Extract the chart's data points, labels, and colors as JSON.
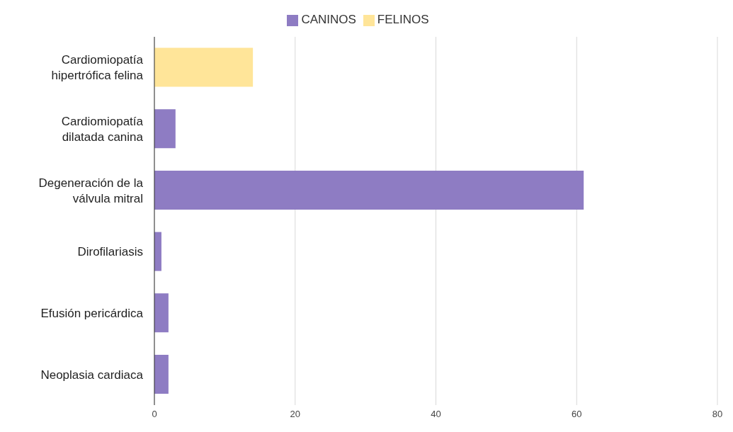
{
  "chart_data": {
    "type": "bar",
    "orientation": "horizontal",
    "stacked": true,
    "categories": [
      "Cardiomiopatía hipertrófica felina",
      "Cardiomiopatía dilatada canina",
      "Degeneración de la válvula mitral",
      "Dirofilariasis",
      "Efusión pericárdica",
      "Neoplasia cardiaca"
    ],
    "series": [
      {
        "name": "CANINOS",
        "color": "#8e7cc3",
        "values": [
          null,
          3,
          61,
          1,
          2,
          2
        ]
      },
      {
        "name": "FELINOS",
        "color": "#ffe599",
        "values": [
          14,
          null,
          null,
          null,
          null,
          null
        ]
      }
    ],
    "xlim": [
      0,
      80
    ],
    "xticks": [
      0,
      20,
      40,
      60,
      80
    ],
    "grid": "x",
    "legend": "top"
  }
}
